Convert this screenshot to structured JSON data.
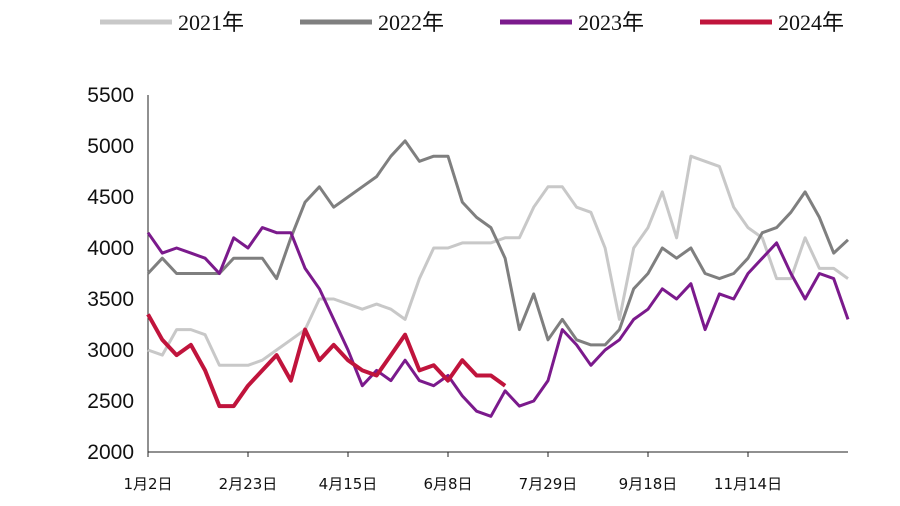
{
  "chart_data": {
    "type": "line",
    "categories": [
      "1月2日",
      null,
      null,
      null,
      null,
      null,
      null,
      "2月23日",
      null,
      null,
      null,
      null,
      null,
      null,
      "4月15日",
      null,
      null,
      null,
      null,
      null,
      null,
      "6月8日",
      null,
      null,
      null,
      null,
      null,
      null,
      "7月29日",
      null,
      null,
      null,
      null,
      null,
      null,
      "9月18日",
      null,
      null,
      null,
      null,
      null,
      null,
      "11月14日",
      null,
      null,
      null,
      null,
      null,
      null,
      null
    ],
    "series": [
      {
        "name": "2021年",
        "color": "#c8c8c8",
        "values": [
          3000,
          2950,
          3200,
          3200,
          3150,
          2850,
          2850,
          2850,
          2900,
          3000,
          3100,
          3200,
          3500,
          3500,
          3450,
          3400,
          3450,
          3400,
          3300,
          3700,
          4000,
          4000,
          4050,
          4050,
          4050,
          4100,
          4100,
          4400,
          4600,
          4600,
          4400,
          4350,
          4000,
          3300,
          4000,
          4200,
          4550,
          4100,
          4900,
          4850,
          4800,
          4400,
          4200,
          4100,
          3700,
          3700,
          4100,
          3800,
          3800,
          3700
        ]
      },
      {
        "name": "2022年",
        "color": "#7f7f7f",
        "values": [
          3750,
          3900,
          3750,
          3750,
          3750,
          3750,
          3900,
          3900,
          3900,
          3700,
          4100,
          4450,
          4600,
          4400,
          4500,
          4600,
          4700,
          4900,
          5050,
          4850,
          4900,
          4900,
          4450,
          4300,
          4200,
          3900,
          3200,
          3550,
          3100,
          3300,
          3100,
          3050,
          3050,
          3200,
          3600,
          3750,
          4000,
          3900,
          4000,
          3750,
          3700,
          3750,
          3900,
          4150,
          4200,
          4350,
          4550,
          4300,
          3950,
          4080
        ]
      },
      {
        "name": "2023年",
        "color": "#7b1a8c",
        "values": [
          4150,
          3950,
          4000,
          3950,
          3900,
          3750,
          4100,
          4000,
          4200,
          4150,
          4150,
          3800,
          3600,
          3300,
          3000,
          2650,
          2800,
          2700,
          2900,
          2700,
          2650,
          2750,
          2550,
          2400,
          2350,
          2600,
          2450,
          2500,
          2700,
          3200,
          3050,
          2850,
          3000,
          3100,
          3300,
          3400,
          3600,
          3500,
          3650,
          3200,
          3550,
          3500,
          3750,
          3900,
          4050,
          3750,
          3500,
          3750,
          3700,
          3300
        ]
      },
      {
        "name": "2024年",
        "color": "#c0143c",
        "values": [
          3350,
          3100,
          2950,
          3050,
          2800,
          2450,
          2450,
          2650,
          2800,
          2950,
          2700,
          3200,
          2900,
          3050,
          2900,
          2800,
          2750,
          2950,
          3150,
          2800,
          2850,
          2700,
          2900,
          2750,
          2750,
          2650,
          null,
          null,
          null,
          null,
          null,
          null,
          null,
          null,
          null,
          null,
          null,
          null,
          null,
          null,
          null,
          null,
          null,
          null,
          null,
          null,
          null,
          null,
          null,
          null
        ]
      }
    ],
    "ylim": [
      2000,
      5500
    ],
    "yticks": [
      2000,
      2500,
      3000,
      3500,
      4000,
      4500,
      5000,
      5500
    ],
    "grid": false
  }
}
